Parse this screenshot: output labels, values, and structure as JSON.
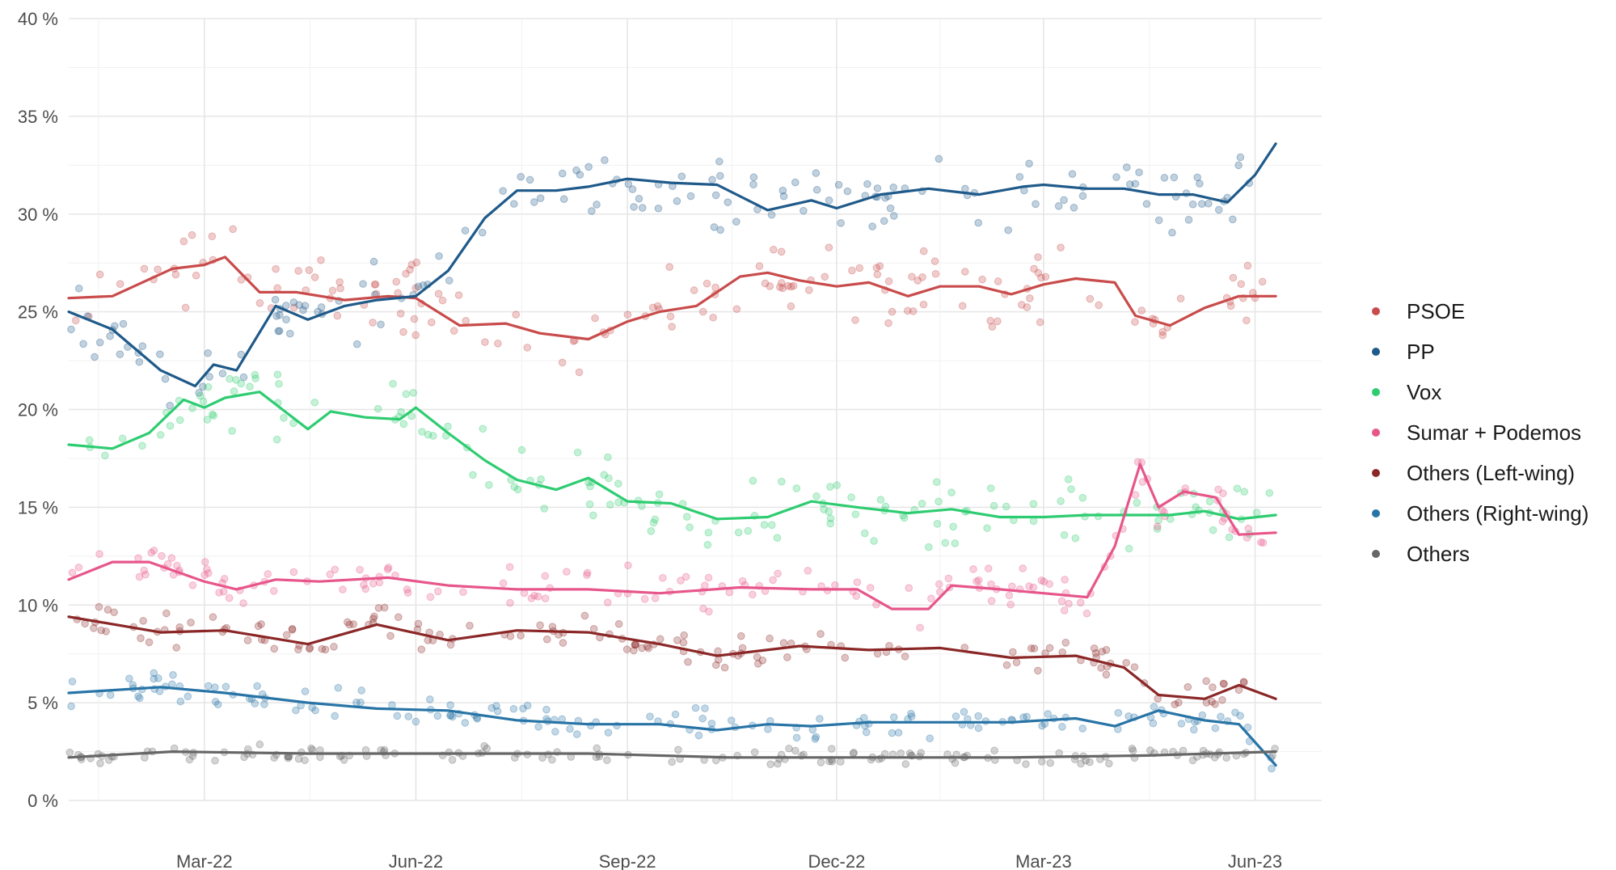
{
  "chart_data": {
    "type": "line",
    "title": "",
    "xlabel": "",
    "ylabel": "",
    "ylim": [
      0,
      40
    ],
    "xlim": [
      "2022-01-01",
      "2023-06-30"
    ],
    "y_ticks": [
      "0 %",
      "5 %",
      "10 %",
      "15 %",
      "20 %",
      "25 %",
      "30 %",
      "35 %",
      "40 %"
    ],
    "x_ticks": [
      {
        "date": "2022-03-01",
        "label": "Mar-22"
      },
      {
        "date": "2022-06-01",
        "label": "Jun-22"
      },
      {
        "date": "2022-09-01",
        "label": "Sep-22"
      },
      {
        "date": "2022-12-01",
        "label": "Dec-22"
      },
      {
        "date": "2023-03-01",
        "label": "Mar-23"
      },
      {
        "date": "2023-06-01",
        "label": "Jun-23"
      }
    ],
    "grid": true,
    "legend_position": "right",
    "series": [
      {
        "name": "PSOE",
        "color": "#c94b4b",
        "x": [
          "2022-01-01",
          "2022-01-20",
          "2022-02-15",
          "2022-03-01",
          "2022-03-10",
          "2022-03-25",
          "2022-04-10",
          "2022-05-01",
          "2022-05-20",
          "2022-06-01",
          "2022-06-20",
          "2022-07-10",
          "2022-07-25",
          "2022-08-15",
          "2022-09-01",
          "2022-09-15",
          "2022-10-01",
          "2022-10-20",
          "2022-11-01",
          "2022-11-15",
          "2022-12-01",
          "2022-12-15",
          "2023-01-01",
          "2023-01-15",
          "2023-02-01",
          "2023-02-15",
          "2023-03-01",
          "2023-03-15",
          "2023-04-01",
          "2023-04-10",
          "2023-04-25",
          "2023-05-10",
          "2023-05-25",
          "2023-06-10"
        ],
        "y": [
          25.7,
          25.8,
          27.2,
          27.4,
          27.8,
          26.0,
          26.0,
          25.6,
          25.8,
          25.7,
          24.3,
          24.4,
          23.9,
          23.6,
          24.5,
          25.0,
          25.3,
          26.8,
          27.0,
          26.6,
          26.3,
          26.5,
          25.8,
          26.3,
          26.3,
          25.9,
          26.4,
          26.7,
          26.5,
          24.8,
          24.3,
          25.2,
          25.8,
          25.8
        ]
      },
      {
        "name": "PP",
        "color": "#1f5a8a",
        "x": [
          "2022-01-01",
          "2022-01-20",
          "2022-02-10",
          "2022-02-25",
          "2022-03-05",
          "2022-03-15",
          "2022-04-01",
          "2022-04-15",
          "2022-05-01",
          "2022-05-15",
          "2022-06-01",
          "2022-06-15",
          "2022-07-01",
          "2022-07-15",
          "2022-08-01",
          "2022-08-15",
          "2022-09-01",
          "2022-09-20",
          "2022-10-10",
          "2022-11-01",
          "2022-11-20",
          "2022-12-01",
          "2022-12-20",
          "2023-01-10",
          "2023-02-01",
          "2023-02-20",
          "2023-03-01",
          "2023-03-20",
          "2023-04-05",
          "2023-04-20",
          "2023-05-05",
          "2023-05-20",
          "2023-06-01",
          "2023-06-10"
        ],
        "y": [
          25.0,
          24.1,
          22.0,
          21.2,
          22.3,
          22.0,
          25.3,
          24.6,
          25.3,
          25.6,
          25.8,
          27.1,
          29.8,
          31.2,
          31.2,
          31.4,
          31.8,
          31.6,
          31.5,
          30.2,
          30.7,
          30.3,
          31.0,
          31.3,
          31.0,
          31.4,
          31.5,
          31.3,
          31.3,
          31.0,
          31.0,
          30.6,
          32.0,
          33.6
        ]
      },
      {
        "name": "Vox",
        "color": "#2ecc71",
        "x": [
          "2022-01-01",
          "2022-01-20",
          "2022-02-05",
          "2022-02-20",
          "2022-03-01",
          "2022-03-10",
          "2022-03-25",
          "2022-04-15",
          "2022-04-25",
          "2022-05-10",
          "2022-05-25",
          "2022-06-01",
          "2022-06-15",
          "2022-07-01",
          "2022-07-15",
          "2022-08-01",
          "2022-08-15",
          "2022-09-01",
          "2022-09-20",
          "2022-10-10",
          "2022-11-01",
          "2022-11-20",
          "2022-12-10",
          "2023-01-01",
          "2023-01-20",
          "2023-02-10",
          "2023-03-01",
          "2023-03-20",
          "2023-04-10",
          "2023-04-25",
          "2023-05-10",
          "2023-05-25",
          "2023-06-10"
        ],
        "y": [
          18.2,
          18.0,
          18.8,
          20.5,
          20.1,
          20.6,
          20.9,
          19.0,
          19.9,
          19.6,
          19.5,
          20.1,
          18.8,
          17.4,
          16.4,
          15.9,
          16.5,
          15.3,
          15.2,
          14.4,
          14.5,
          15.3,
          15.0,
          14.7,
          14.9,
          14.5,
          14.5,
          14.6,
          14.6,
          14.6,
          14.8,
          14.4,
          14.6
        ]
      },
      {
        "name": "Sumar + Podemos",
        "color": "#e7568a",
        "x": [
          "2022-01-01",
          "2022-01-20",
          "2022-02-05",
          "2022-03-01",
          "2022-03-15",
          "2022-04-01",
          "2022-04-20",
          "2022-05-20",
          "2022-06-15",
          "2022-07-15",
          "2022-08-15",
          "2022-09-15",
          "2022-10-20",
          "2022-11-20",
          "2022-12-10",
          "2022-12-25",
          "2023-01-10",
          "2023-01-20",
          "2023-02-10",
          "2023-03-01",
          "2023-03-20",
          "2023-04-01",
          "2023-04-12",
          "2023-04-20",
          "2023-05-01",
          "2023-05-15",
          "2023-05-25",
          "2023-06-10"
        ],
        "y": [
          11.3,
          12.2,
          12.2,
          11.2,
          10.8,
          11.3,
          11.2,
          11.4,
          11.0,
          10.8,
          10.8,
          10.6,
          10.9,
          10.8,
          10.8,
          9.8,
          9.8,
          11.0,
          10.8,
          10.6,
          10.4,
          13.0,
          17.2,
          15.0,
          15.8,
          15.5,
          13.6,
          13.7
        ]
      },
      {
        "name": "Others (Left-wing)",
        "color": "#8b2727",
        "x": [
          "2022-01-01",
          "2022-02-10",
          "2022-03-10",
          "2022-04-15",
          "2022-05-15",
          "2022-06-15",
          "2022-07-15",
          "2022-08-15",
          "2022-09-15",
          "2022-10-10",
          "2022-11-15",
          "2022-12-15",
          "2023-01-15",
          "2023-02-15",
          "2023-03-15",
          "2023-04-05",
          "2023-04-20",
          "2023-05-10",
          "2023-05-25",
          "2023-06-10"
        ],
        "y": [
          9.4,
          8.6,
          8.7,
          8.0,
          9.0,
          8.2,
          8.7,
          8.6,
          8.0,
          7.4,
          7.9,
          7.7,
          7.8,
          7.3,
          7.4,
          6.8,
          5.4,
          5.2,
          5.9,
          5.2
        ]
      },
      {
        "name": "Others (Right-wing)",
        "color": "#2874a6",
        "x": [
          "2022-01-01",
          "2022-02-10",
          "2022-03-10",
          "2022-04-15",
          "2022-05-15",
          "2022-06-15",
          "2022-07-15",
          "2022-08-15",
          "2022-09-15",
          "2022-10-10",
          "2022-11-01",
          "2022-11-20",
          "2022-12-15",
          "2023-01-15",
          "2023-02-15",
          "2023-03-15",
          "2023-04-01",
          "2023-04-20",
          "2023-05-10",
          "2023-05-25",
          "2023-06-10"
        ],
        "y": [
          5.5,
          5.8,
          5.5,
          5.0,
          4.7,
          4.6,
          4.1,
          3.9,
          3.9,
          3.6,
          3.9,
          3.8,
          4.0,
          4.0,
          4.0,
          4.2,
          3.8,
          4.6,
          4.1,
          3.9,
          1.8
        ]
      },
      {
        "name": "Others",
        "color": "#666666",
        "x": [
          "2022-01-01",
          "2022-02-15",
          "2022-04-15",
          "2022-06-15",
          "2022-08-15",
          "2022-10-15",
          "2022-12-15",
          "2023-02-15",
          "2023-04-15",
          "2023-06-10"
        ],
        "y": [
          2.2,
          2.5,
          2.4,
          2.4,
          2.4,
          2.2,
          2.2,
          2.2,
          2.3,
          2.5
        ]
      }
    ]
  }
}
